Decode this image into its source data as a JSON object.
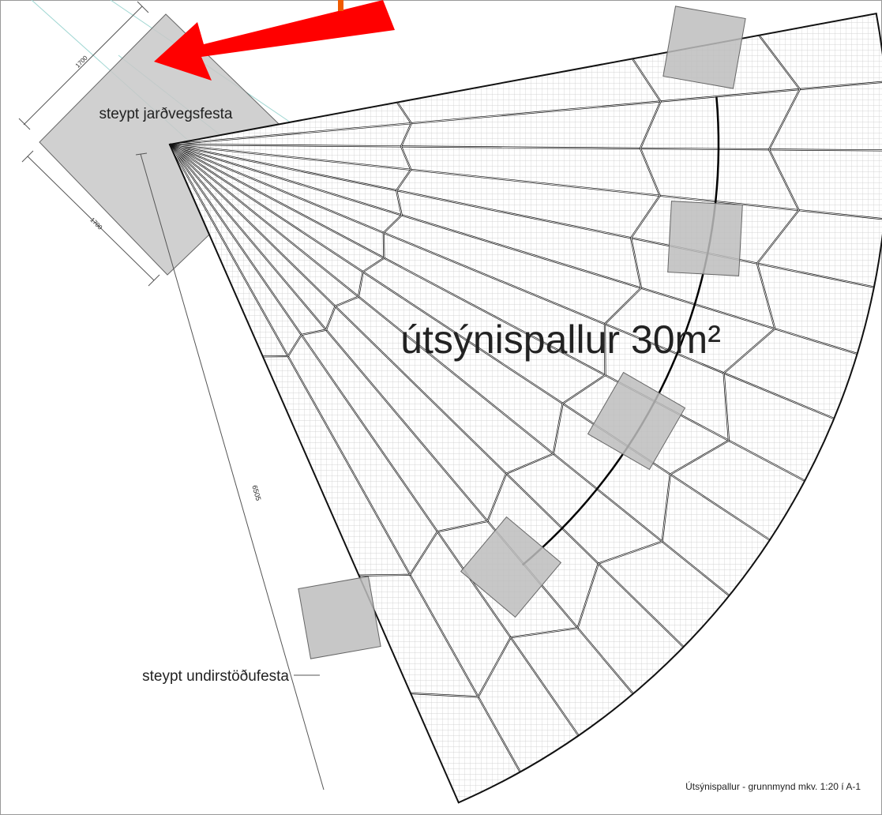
{
  "labels": {
    "foundation_top": "steypt jarðvegsfesta",
    "dim_top": "1700",
    "dim_side": "1700",
    "dim_long": "6505",
    "deck": "útsýnispallur 30m²",
    "footing": "steypt undirstöðufesta",
    "caption": "Útsýnispallur - grunnmynd mkv. 1:20 í A-1"
  }
}
